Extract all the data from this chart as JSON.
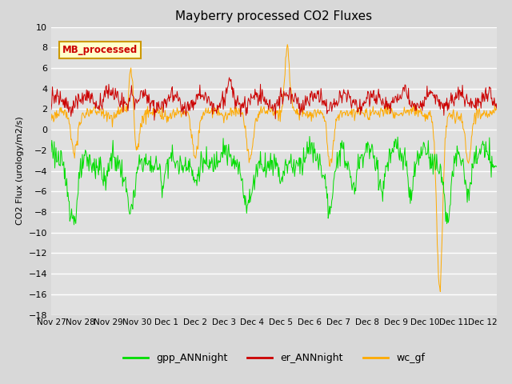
{
  "title": "Mayberry processed CO2 Fluxes",
  "ylabel": "CO2 Flux (urology/m2/s)",
  "xlim_days": [
    0,
    15.5
  ],
  "ylim": [
    -18,
    10
  ],
  "yticks": [
    -18,
    -16,
    -14,
    -12,
    -10,
    -8,
    -6,
    -4,
    -2,
    0,
    2,
    4,
    6,
    8,
    10
  ],
  "background_color": "#d8d8d8",
  "plot_bg_color": "#e0e0e0",
  "grid_color": "white",
  "series": {
    "gpp": {
      "color": "#00dd00",
      "label": "gpp_ANNnight"
    },
    "er": {
      "color": "#cc0000",
      "label": "er_ANNnight"
    },
    "wc": {
      "color": "#ffaa00",
      "label": "wc_gf"
    }
  },
  "legend_box": {
    "text": "MB_processed",
    "facecolor": "#ffffcc",
    "edgecolor": "#cc9900",
    "textcolor": "#cc0000"
  },
  "xtick_labels": [
    "Nov 27",
    "Nov 28",
    "Nov 29",
    "Nov 30",
    "Dec 1",
    "Dec 2",
    "Dec 3",
    "Dec 4",
    "Dec 5",
    "Dec 6",
    "Dec 7",
    "Dec 8",
    "Dec 9",
    "Dec 10",
    "Dec 11",
    "Dec 12"
  ],
  "xtick_positions": [
    0,
    1,
    2,
    3,
    4,
    5,
    6,
    7,
    8,
    9,
    10,
    11,
    12,
    13,
    14,
    15
  ]
}
